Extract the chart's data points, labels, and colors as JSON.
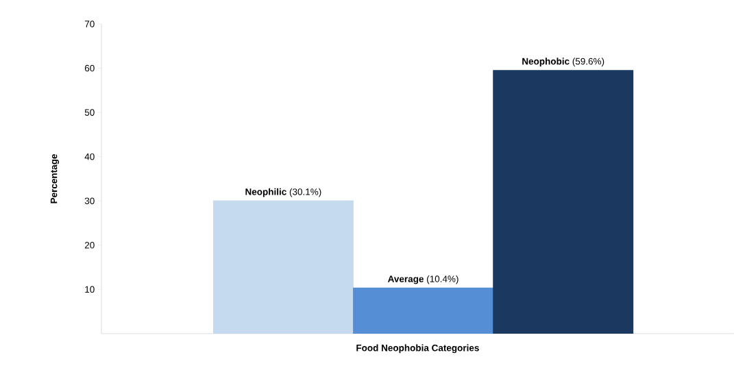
{
  "chart_data": {
    "type": "bar",
    "xlabel": "Food Neophobia Categories",
    "ylabel": "Percentage",
    "categories": [
      "Neophilic",
      "Average",
      "Neophobic"
    ],
    "values": [
      30.1,
      10.4,
      59.6
    ],
    "value_labels": [
      "(30.1%)",
      "(10.4%)",
      "(59.6%)"
    ],
    "colors": [
      "#c6daef",
      "#558ed5",
      "#1a3860"
    ],
    "ylim": [
      0,
      70
    ],
    "yticks": [
      10,
      20,
      30,
      40,
      50,
      60,
      70
    ]
  }
}
